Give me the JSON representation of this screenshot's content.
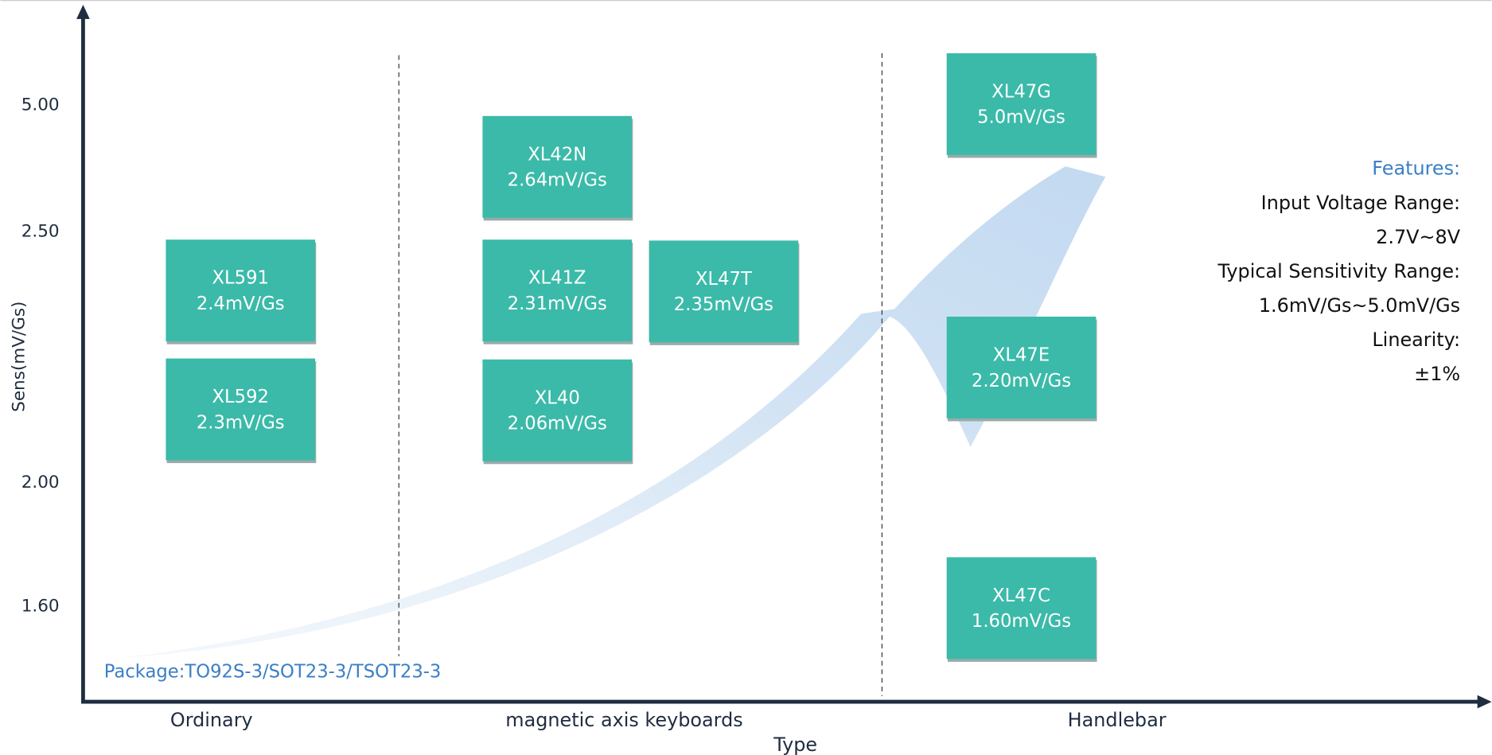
{
  "axis": {
    "y_title": "Sens(mV/Gs)",
    "x_title": "Type",
    "y_ticks": [
      "5.00",
      "2.50",
      "2.00",
      "1.60"
    ],
    "categories": [
      "Ordinary",
      "magnetic axis keyboards",
      "Handlebar"
    ]
  },
  "products": [
    {
      "name": "XL591",
      "sensitivity": "2.4mV/Gs"
    },
    {
      "name": "XL592",
      "sensitivity": "2.3mV/Gs"
    },
    {
      "name": "XL42N",
      "sensitivity": "2.64mV/Gs"
    },
    {
      "name": "XL41Z",
      "sensitivity": "2.31mV/Gs"
    },
    {
      "name": "XL47T",
      "sensitivity": "2.35mV/Gs"
    },
    {
      "name": "XL40",
      "sensitivity": "2.06mV/Gs"
    },
    {
      "name": "XL47G",
      "sensitivity": "5.0mV/Gs"
    },
    {
      "name": "XL47E",
      "sensitivity": "2.20mV/Gs"
    },
    {
      "name": "XL47C",
      "sensitivity": "1.60mV/Gs"
    }
  ],
  "features": {
    "title": "Features:",
    "lines": [
      "Input Voltage Range:",
      "2.7V~8V",
      "Typical Sensitivity Range:",
      "1.6mV/Gs~5.0mV/Gs",
      "Linearity:",
      "±1%"
    ]
  },
  "package": "Package:TO92S-3/SOT23-3/TSOT23-3"
}
